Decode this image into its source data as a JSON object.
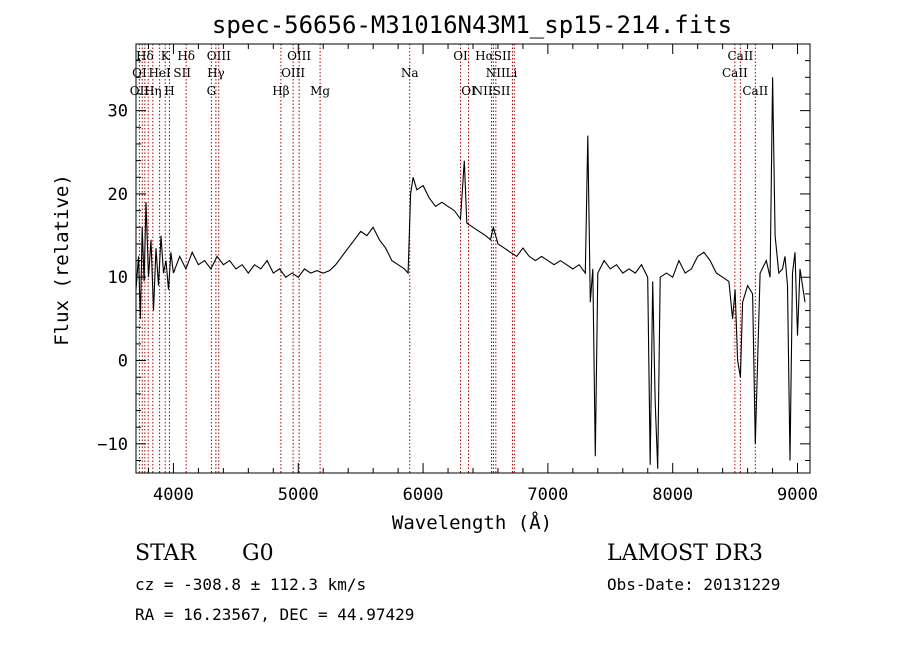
{
  "chart_data": {
    "type": "line",
    "title": "spec-56656-M31016N43M1_sp15-214.fits",
    "xlabel": "Wavelength (Å)",
    "ylabel": "Flux (relative)",
    "xlim": [
      3700,
      9100
    ],
    "ylim": [
      -13.5,
      38
    ],
    "xticks": [
      4000,
      5000,
      6000,
      7000,
      8000,
      9000
    ],
    "yticks": [
      -10,
      0,
      10,
      20,
      30
    ],
    "grid": false,
    "line_color": "#000000",
    "marker_color": "#aa0000",
    "series": [
      {
        "points": [
          [
            3700,
            8.5
          ],
          [
            3720,
            12.5
          ],
          [
            3735,
            5.0
          ],
          [
            3750,
            16.0
          ],
          [
            3765,
            9.5
          ],
          [
            3780,
            19.0
          ],
          [
            3800,
            10.0
          ],
          [
            3820,
            14.5
          ],
          [
            3840,
            6.0
          ],
          [
            3860,
            13.5
          ],
          [
            3880,
            9.0
          ],
          [
            3900,
            15.0
          ],
          [
            3920,
            10.5
          ],
          [
            3940,
            12.0
          ],
          [
            3960,
            8.5
          ],
          [
            3980,
            13.0
          ],
          [
            4000,
            10.5
          ],
          [
            4050,
            12.5
          ],
          [
            4100,
            11.0
          ],
          [
            4150,
            13.0
          ],
          [
            4200,
            11.5
          ],
          [
            4250,
            12.0
          ],
          [
            4300,
            11.0
          ],
          [
            4350,
            12.5
          ],
          [
            4400,
            11.5
          ],
          [
            4450,
            12.0
          ],
          [
            4500,
            11.0
          ],
          [
            4550,
            11.5
          ],
          [
            4600,
            10.5
          ],
          [
            4650,
            11.5
          ],
          [
            4700,
            11.0
          ],
          [
            4750,
            12.0
          ],
          [
            4800,
            10.5
          ],
          [
            4850,
            11.0
          ],
          [
            4900,
            10.0
          ],
          [
            4950,
            10.5
          ],
          [
            5000,
            10.0
          ],
          [
            5050,
            11.0
          ],
          [
            5100,
            10.5
          ],
          [
            5150,
            10.8
          ],
          [
            5200,
            10.5
          ],
          [
            5250,
            10.8
          ],
          [
            5300,
            11.5
          ],
          [
            5350,
            12.5
          ],
          [
            5400,
            13.5
          ],
          [
            5450,
            14.5
          ],
          [
            5500,
            15.5
          ],
          [
            5550,
            15.0
          ],
          [
            5600,
            16.0
          ],
          [
            5650,
            14.5
          ],
          [
            5700,
            13.5
          ],
          [
            5750,
            12.0
          ],
          [
            5800,
            11.5
          ],
          [
            5850,
            11.0
          ],
          [
            5880,
            10.5
          ],
          [
            5900,
            20.0
          ],
          [
            5920,
            22.0
          ],
          [
            5950,
            20.5
          ],
          [
            6000,
            21.0
          ],
          [
            6050,
            19.5
          ],
          [
            6100,
            18.5
          ],
          [
            6150,
            19.0
          ],
          [
            6200,
            18.5
          ],
          [
            6250,
            18.0
          ],
          [
            6300,
            17.0
          ],
          [
            6330,
            24.0
          ],
          [
            6350,
            16.5
          ],
          [
            6400,
            16.0
          ],
          [
            6450,
            15.5
          ],
          [
            6500,
            15.0
          ],
          [
            6540,
            14.5
          ],
          [
            6563,
            16.0
          ],
          [
            6600,
            14.0
          ],
          [
            6650,
            13.5
          ],
          [
            6700,
            13.0
          ],
          [
            6750,
            12.5
          ],
          [
            6800,
            13.5
          ],
          [
            6850,
            12.5
          ],
          [
            6900,
            12.0
          ],
          [
            6950,
            12.5
          ],
          [
            7000,
            12.0
          ],
          [
            7050,
            11.5
          ],
          [
            7100,
            12.0
          ],
          [
            7150,
            11.5
          ],
          [
            7200,
            11.0
          ],
          [
            7250,
            11.5
          ],
          [
            7300,
            10.5
          ],
          [
            7320,
            27.0
          ],
          [
            7340,
            7.0
          ],
          [
            7360,
            11.0
          ],
          [
            7380,
            -11.5
          ],
          [
            7400,
            10.5
          ],
          [
            7450,
            12.0
          ],
          [
            7500,
            11.0
          ],
          [
            7550,
            11.5
          ],
          [
            7600,
            10.5
          ],
          [
            7650,
            11.0
          ],
          [
            7700,
            10.5
          ],
          [
            7750,
            11.5
          ],
          [
            7800,
            10.0
          ],
          [
            7820,
            -12.5
          ],
          [
            7840,
            9.5
          ],
          [
            7860,
            -5.0
          ],
          [
            7880,
            -13.0
          ],
          [
            7900,
            10.0
          ],
          [
            7950,
            10.5
          ],
          [
            8000,
            10.0
          ],
          [
            8050,
            12.0
          ],
          [
            8100,
            10.5
          ],
          [
            8150,
            11.0
          ],
          [
            8200,
            12.5
          ],
          [
            8250,
            13.0
          ],
          [
            8300,
            12.0
          ],
          [
            8350,
            10.5
          ],
          [
            8400,
            10.0
          ],
          [
            8450,
            9.5
          ],
          [
            8480,
            5.0
          ],
          [
            8500,
            8.5
          ],
          [
            8520,
            0.0
          ],
          [
            8542,
            -2.0
          ],
          [
            8560,
            7.0
          ],
          [
            8600,
            9.0
          ],
          [
            8640,
            8.0
          ],
          [
            8662,
            -10.0
          ],
          [
            8700,
            10.5
          ],
          [
            8750,
            12.0
          ],
          [
            8780,
            10.0
          ],
          [
            8800,
            34.0
          ],
          [
            8820,
            15.0
          ],
          [
            8850,
            10.5
          ],
          [
            8880,
            11.0
          ],
          [
            8900,
            12.5
          ],
          [
            8920,
            9.0
          ],
          [
            8940,
            -12.0
          ],
          [
            8960,
            10.5
          ],
          [
            8980,
            13.0
          ],
          [
            9000,
            3.0
          ],
          [
            9020,
            11.0
          ],
          [
            9040,
            9.0
          ],
          [
            9060,
            7.0
          ]
        ]
      }
    ],
    "lines": [
      {
        "label": "Hδ",
        "wave": 3771,
        "row": 0
      },
      {
        "label": "K",
        "wave": 3934,
        "row": 0
      },
      {
        "label": "Hδ",
        "wave": 4102,
        "row": 0
      },
      {
        "label": "OIII",
        "wave": 4363,
        "row": 0
      },
      {
        "label": "OIII",
        "wave": 5007,
        "row": 0
      },
      {
        "label": "OI",
        "wave": 6300,
        "row": 0
      },
      {
        "label": "HαSII",
        "wave": 6563,
        "row": 0
      },
      {
        "label": "CaII",
        "wave": 8542,
        "row": 0
      },
      {
        "label": "OI",
        "wave": 3727,
        "row": 1
      },
      {
        "label": "HeI",
        "wave": 3889,
        "row": 1
      },
      {
        "label": "SII",
        "wave": 4070,
        "row": 1
      },
      {
        "label": "Hγ",
        "wave": 4340,
        "row": 1
      },
      {
        "label": "OIII",
        "wave": 4959,
        "row": 1
      },
      {
        "label": "Na",
        "wave": 5893,
        "row": 1
      },
      {
        "label": "NII",
        "wave": 6583,
        "row": 1
      },
      {
        "label": "Li",
        "wave": 6708,
        "row": 1
      },
      {
        "label": "CaII",
        "wave": 8498,
        "row": 1
      },
      {
        "label": "OII",
        "wave": 3727,
        "row": 2
      },
      {
        "label": "Hη",
        "wave": 3835,
        "row": 2
      },
      {
        "label": "H",
        "wave": 3968,
        "row": 2
      },
      {
        "label": "G",
        "wave": 4304,
        "row": 2
      },
      {
        "label": "Hβ",
        "wave": 4861,
        "row": 2
      },
      {
        "label": "Mg",
        "wave": 5175,
        "row": 2
      },
      {
        "label": "OI",
        "wave": 6364,
        "row": 2
      },
      {
        "label": "NIISII",
        "wave": 6548,
        "row": 2
      },
      {
        "label": "CaII",
        "wave": 8662,
        "row": 2
      }
    ],
    "marker_waves": [
      3727,
      3750,
      3771,
      3798,
      3835,
      3889,
      3934,
      3968,
      4102,
      4304,
      4340,
      4363,
      4861,
      4959,
      5007,
      5175,
      5893,
      6300,
      6364,
      6548,
      6563,
      6583,
      6716,
      6731,
      8498,
      8542,
      8662
    ]
  },
  "info": {
    "class": "STAR",
    "subclass": "G0",
    "survey": "LAMOST DR3",
    "redshift_line": "cz = -308.8 ± 112.3 km/s",
    "obs_date_line": "Obs-Date: 20131229",
    "coords_line": "RA =  16.23567, DEC =  44.97429"
  }
}
